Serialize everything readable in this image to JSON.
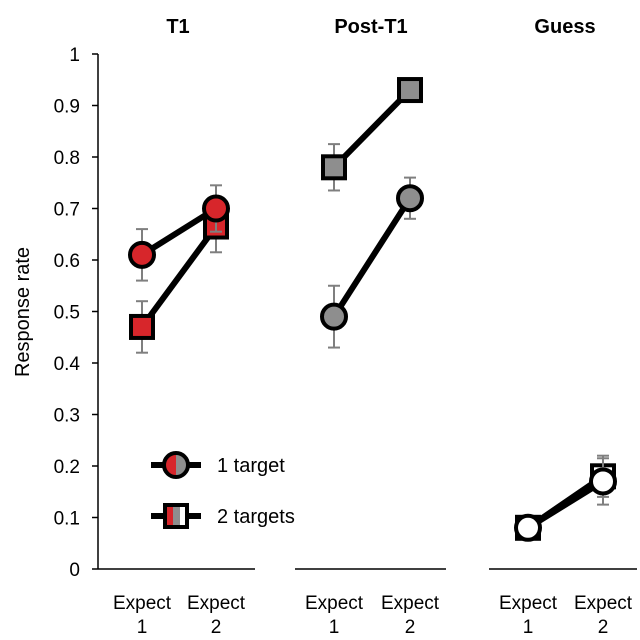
{
  "chart_data": {
    "type": "line",
    "ylabel": "Response rate",
    "ylim": [
      0,
      1
    ],
    "yticks": [
      "0",
      "0.1",
      "0.2",
      "0.3",
      "0.4",
      "0.5",
      "0.6",
      "0.7",
      "0.8",
      "0.9",
      "1"
    ],
    "categories": [
      [
        "Expect",
        "1"
      ],
      [
        "Expect",
        "2"
      ]
    ],
    "legend": [
      {
        "label": "1 target",
        "marker": "circle"
      },
      {
        "label": "2 targets",
        "marker": "square"
      }
    ],
    "panels": [
      {
        "title": "T1",
        "fill": "#d7262b",
        "series": [
          {
            "name": "1 target",
            "marker": "circle",
            "values": [
              0.61,
              0.7
            ],
            "err": [
              0.05,
              0.045
            ]
          },
          {
            "name": "2 targets",
            "marker": "square",
            "values": [
              0.47,
              0.665
            ],
            "err": [
              0.05,
              0.05
            ]
          }
        ]
      },
      {
        "title": "Post-T1",
        "fill": "#8e8e8e",
        "series": [
          {
            "name": "1 target",
            "marker": "circle",
            "values": [
              0.49,
              0.72
            ],
            "err": [
              0.06,
              0.04
            ]
          },
          {
            "name": "2 targets",
            "marker": "square",
            "values": [
              0.78,
              0.93
            ],
            "err": [
              0.045,
              0.0
            ]
          }
        ]
      },
      {
        "title": "Guess",
        "fill": "#ffffff",
        "series": [
          {
            "name": "1 target",
            "marker": "circle",
            "values": [
              0.08,
              0.17
            ],
            "err": [
              0.0,
              0.045
            ]
          },
          {
            "name": "2 targets",
            "marker": "square",
            "values": [
              0.08,
              0.18
            ],
            "err": [
              0.0,
              0.04
            ]
          }
        ]
      }
    ],
    "colors": {
      "line": "#000000",
      "errorbar": "#7f7f7f",
      "axis": "#000000"
    }
  }
}
